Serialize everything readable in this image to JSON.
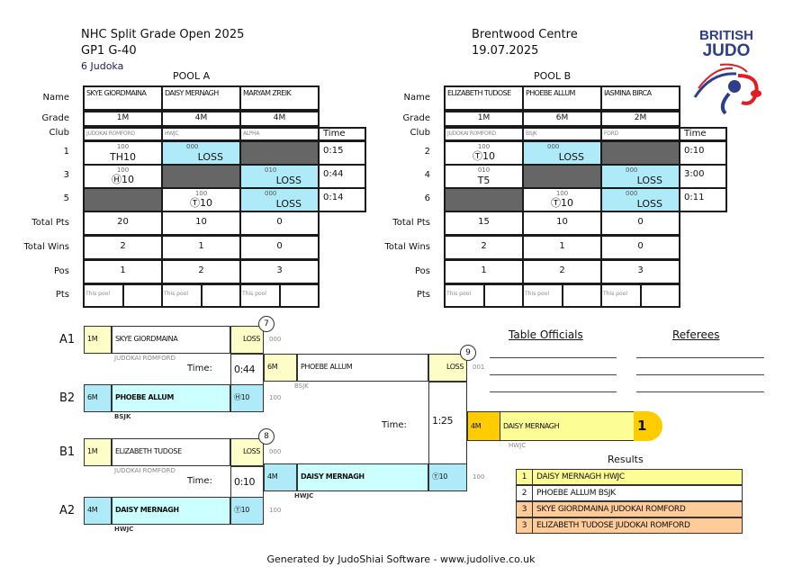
{
  "header": {
    "title": "NHC Split Grade Open 2025",
    "category": "GP1 G-40",
    "count": "6 Judoka",
    "venue": "Brentwood Centre",
    "date": "19.07.2025",
    "logo": "BRITISH JUDO"
  },
  "row_labels": {
    "name": "Name",
    "grade": "Grade",
    "club": "Club",
    "time": "Time",
    "total_pts": "Total Pts",
    "total_wins": "Total Wins",
    "pos": "Pos",
    "pts": "Pts",
    "this_pool": "This pool"
  },
  "pools": [
    {
      "title": "POOL A",
      "players": [
        {
          "name": "SKYE GIORDMAINA",
          "grade": "1M",
          "club": "JUDOKAI ROMFORD",
          "total_pts": "20",
          "total_wins": "2",
          "pos": "1"
        },
        {
          "name": "DAISY MERNAGH",
          "grade": "4M",
          "club": "HWJC",
          "total_pts": "10",
          "total_wins": "1",
          "pos": "2"
        },
        {
          "name": "MARYAM ZREIK",
          "grade": "4M",
          "club": "ALPHA",
          "total_pts": "0",
          "total_wins": "0",
          "pos": "3"
        }
      ],
      "matches": [
        {
          "no": "1",
          "time": "0:15",
          "cells": [
            {
              "type": "win",
              "top": "100",
              "main": "TH10"
            },
            {
              "type": "loss",
              "top": "000",
              "main": "LOSS"
            },
            {
              "type": "empty"
            }
          ]
        },
        {
          "no": "3",
          "time": "0:44",
          "cells": [
            {
              "type": "win",
              "top": "100",
              "main": "Ⓗ10"
            },
            {
              "type": "empty"
            },
            {
              "type": "loss",
              "top": "010",
              "main": "LOSS"
            }
          ]
        },
        {
          "no": "5",
          "time": "0:14",
          "cells": [
            {
              "type": "empty"
            },
            {
              "type": "win",
              "top": "100",
              "main": "Ⓣ10"
            },
            {
              "type": "loss",
              "top": "000",
              "main": "LOSS"
            }
          ]
        }
      ]
    },
    {
      "title": "POOL B",
      "players": [
        {
          "name": "ELIZABETH TUDOSE",
          "grade": "1M",
          "club": "JUDOKAI ROMFORD",
          "total_pts": "15",
          "total_wins": "2",
          "pos": "1"
        },
        {
          "name": "PHOEBE ALLUM",
          "grade": "6M",
          "club": "BSJK",
          "total_pts": "10",
          "total_wins": "1",
          "pos": "2"
        },
        {
          "name": "IASMINA BIRCA",
          "grade": "2M",
          "club": "FORD",
          "total_pts": "0",
          "total_wins": "0",
          "pos": "3"
        }
      ],
      "matches": [
        {
          "no": "2",
          "time": "0:10",
          "cells": [
            {
              "type": "win",
              "top": "100",
              "main": "Ⓣ10"
            },
            {
              "type": "loss",
              "top": "000",
              "main": "LOSS"
            },
            {
              "type": "empty"
            }
          ]
        },
        {
          "no": "4",
          "time": "3:00",
          "cells": [
            {
              "type": "win",
              "top": "010",
              "main": "T5"
            },
            {
              "type": "empty"
            },
            {
              "type": "loss",
              "top": "000",
              "main": "LOSS"
            }
          ]
        },
        {
          "no": "6",
          "time": "0:11",
          "cells": [
            {
              "type": "empty"
            },
            {
              "type": "win",
              "top": "100",
              "main": "Ⓣ10"
            },
            {
              "type": "loss",
              "top": "000",
              "main": "LOSS"
            }
          ]
        }
      ]
    }
  ],
  "bracket": {
    "time_label": "Time:",
    "sf1": {
      "no": "7",
      "time": "0:44",
      "a": {
        "seed": "A1",
        "grade": "1M",
        "name": "SKYE GIORDMAINA",
        "club": "JUDOKAI ROMFORD",
        "score": "LOSS",
        "code": "000"
      },
      "b": {
        "seed": "B2",
        "grade": "6M",
        "name": "PHOEBE ALLUM",
        "club": "BSJK",
        "score": "Ⓗ10",
        "code": "100"
      }
    },
    "sf2": {
      "no": "8",
      "time": "0:10",
      "a": {
        "seed": "B1",
        "grade": "1M",
        "name": "ELIZABETH TUDOSE",
        "club": "JUDOKAI ROMFORD",
        "score": "LOSS",
        "code": "000"
      },
      "b": {
        "seed": "A2",
        "grade": "4M",
        "name": "DAISY MERNAGH",
        "club": "HWJC",
        "score": "Ⓣ10",
        "code": "100"
      }
    },
    "final": {
      "no": "9",
      "time": "1:25",
      "a": {
        "grade": "6M",
        "name": "PHOEBE ALLUM",
        "club": "BSJK",
        "score": "LOSS",
        "code": "001"
      },
      "b": {
        "grade": "4M",
        "name": "DAISY MERNAGH",
        "club": "HWJC",
        "score": "Ⓣ10",
        "code": "100"
      }
    },
    "winner": {
      "grade": "4M",
      "name": "DAISY MERNAGH",
      "club": "HWJC",
      "place": "1"
    }
  },
  "officials": {
    "table": "Table Officials",
    "referees": "Referees"
  },
  "results": {
    "title": "Results",
    "rows": [
      {
        "place": "1",
        "text": "DAISY MERNAGH HWJC",
        "color": "#fdfd96"
      },
      {
        "place": "2",
        "text": "PHOEBE ALLUM BSJK",
        "color": "#ffffff"
      },
      {
        "place": "3",
        "text": "SKYE GIORDMAINA JUDOKAI ROMFORD",
        "color": "#ffcc99"
      },
      {
        "place": "3",
        "text": "ELIZABETH TUDOSE JUDOKAI ROMFORD",
        "color": "#ffcc99"
      }
    ]
  },
  "footer": "Generated by JudoShiai Software - www.judolive.co.uk",
  "colors": {
    "loss": "#aeeaf8",
    "empty": "#666666",
    "winner": "#ffcc00",
    "brand": "#2e3e8c",
    "brand_red": "#e31b23"
  }
}
